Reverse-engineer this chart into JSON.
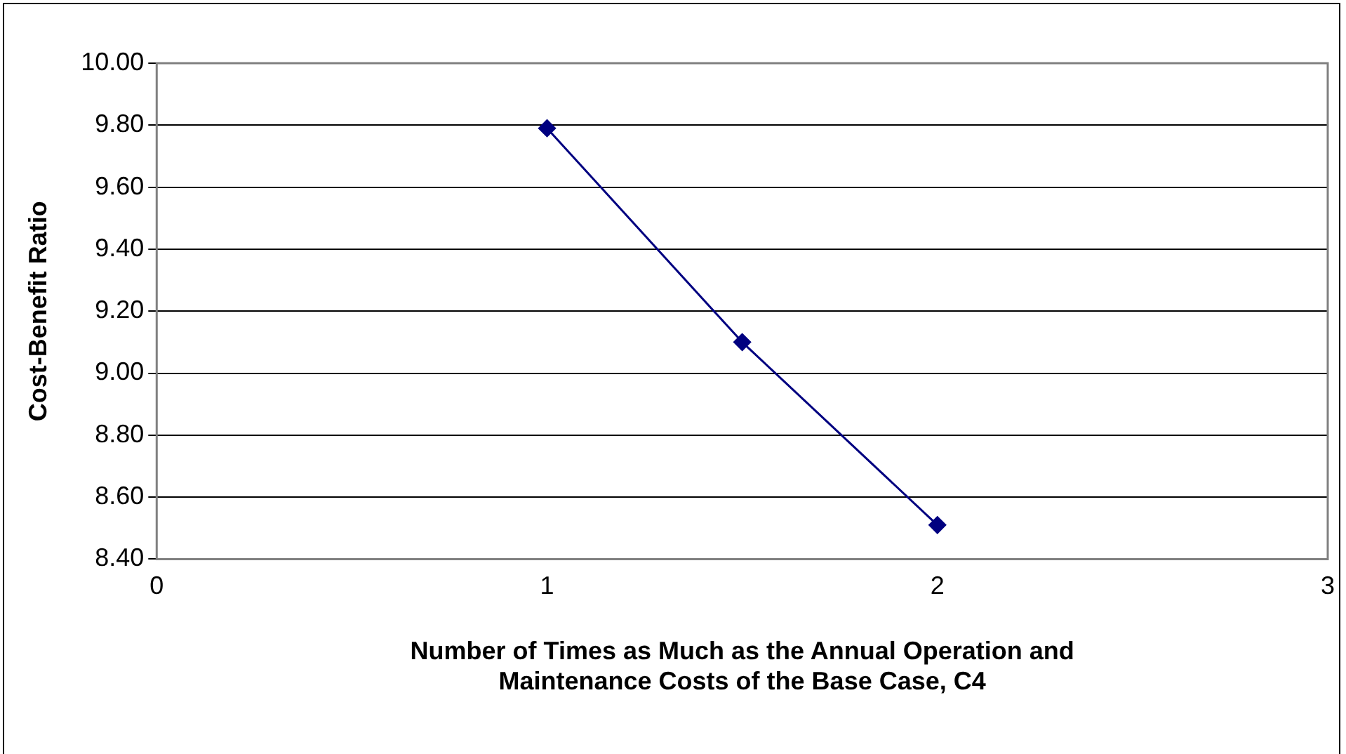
{
  "chart_data": {
    "type": "line",
    "xlabel": "Number of Times as Much as the Annual Operation and Maintenance Costs of the Base Case, C4",
    "ylabel": "Cost-Benefit Ratio",
    "x": [
      1,
      1.5,
      2
    ],
    "series": [
      {
        "color": "#000080",
        "values": [
          9.79,
          9.1,
          8.51
        ]
      }
    ],
    "xlim": [
      0,
      3
    ],
    "xticks": [
      0,
      1,
      2,
      3
    ],
    "ylim": [
      8.4,
      10
    ],
    "yticks": [
      {
        "value": 8.4,
        "label": "8.40"
      },
      {
        "value": 8.6,
        "label": "8.60"
      },
      {
        "value": 8.8,
        "label": "8.80"
      },
      {
        "value": 9,
        "label": "9.00"
      },
      {
        "value": 9.2,
        "label": "9.20"
      },
      {
        "value": 9.4,
        "label": "9.40"
      },
      {
        "value": 9.6,
        "label": "9.60"
      },
      {
        "value": 9.8,
        "label": "9.80"
      },
      {
        "value": 10,
        "label": "10.00"
      }
    ],
    "grid": "y",
    "legend": false,
    "marker": "diamond",
    "line_style": "solid"
  }
}
